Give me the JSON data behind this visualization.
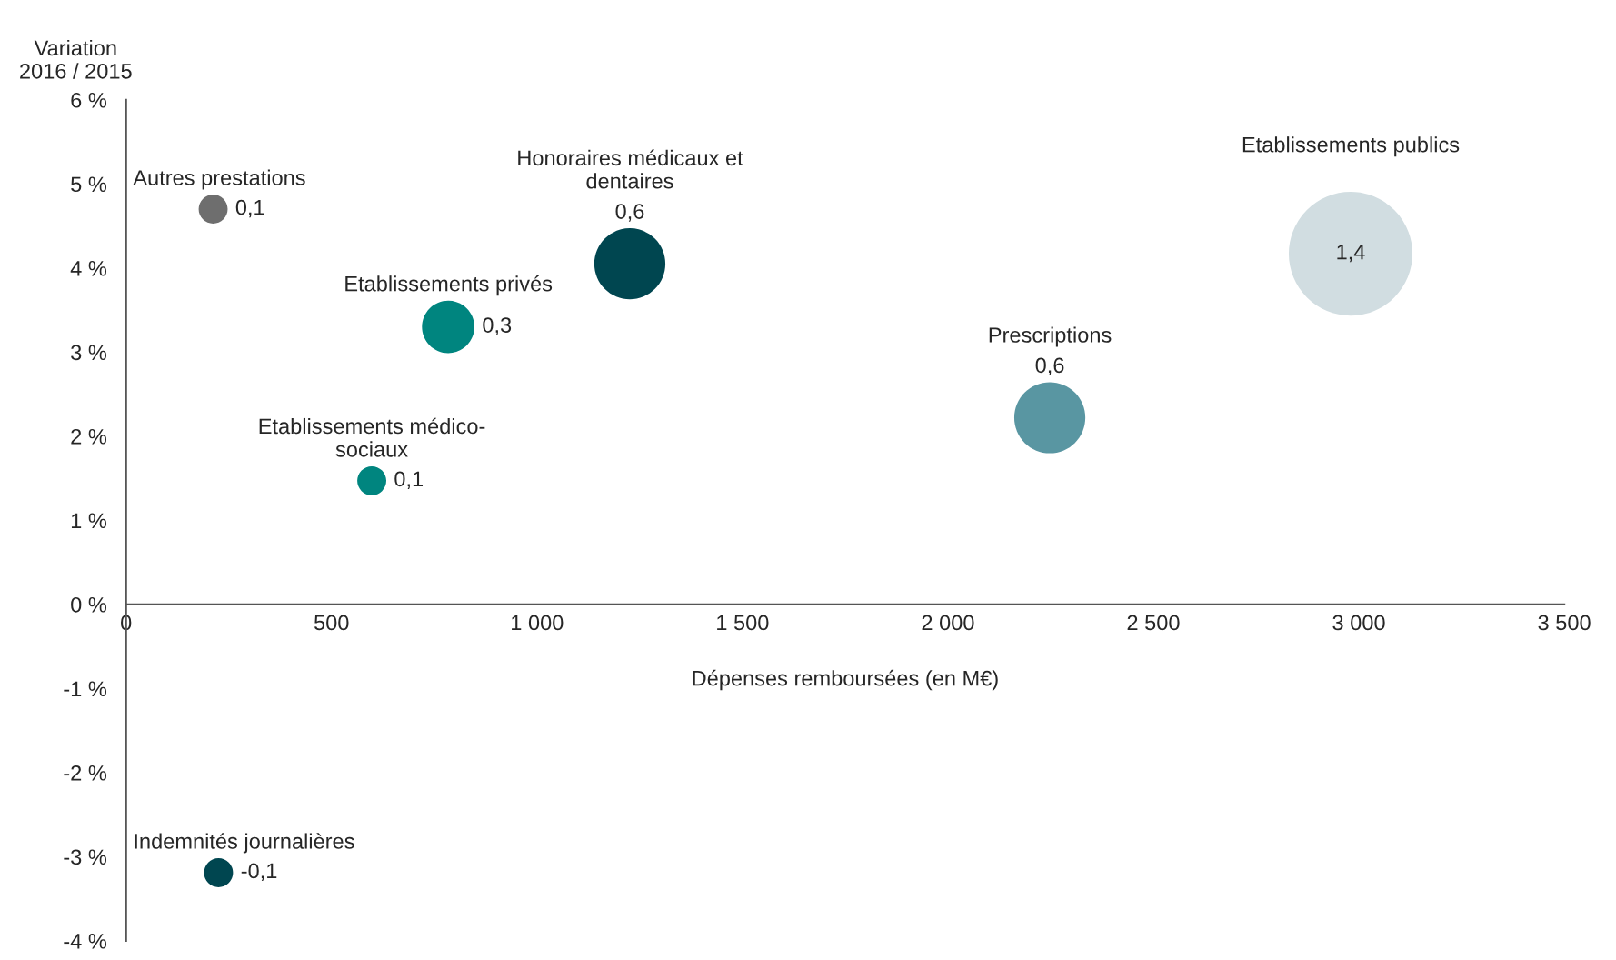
{
  "chart_data": {
    "type": "bubble",
    "xlabel": "Dépenses remboursées (en M€)",
    "ylabel": "Variation\n2016 / 2015",
    "xlim": [
      0,
      3500
    ],
    "xticks": [
      0,
      500,
      {
        "value": 1000,
        "label": "1 000"
      },
      {
        "value": 1500,
        "label": "1 500"
      },
      {
        "value": 2000,
        "label": "2 000"
      },
      {
        "value": 2500,
        "label": "2 500"
      },
      {
        "value": 3000,
        "label": "3 000"
      },
      {
        "value": 3500,
        "label": "3 500"
      }
    ],
    "ylim": [
      -4,
      6
    ],
    "yticks": [
      {
        "value": -4,
        "label": "-4 %"
      },
      {
        "value": -3,
        "label": "-3 %"
      },
      {
        "value": -2,
        "label": "-2 %"
      },
      {
        "value": -1,
        "label": "-1 %"
      },
      {
        "value": 0,
        "label": "0 %"
      },
      {
        "value": 1,
        "label": "1 %"
      },
      {
        "value": 2,
        "label": "2 %"
      },
      {
        "value": 3,
        "label": "3 %"
      },
      {
        "value": 4,
        "label": "4 %"
      },
      {
        "value": 5,
        "label": "5 %"
      },
      {
        "value": 6,
        "label": "6 %"
      }
    ],
    "grid": false,
    "legend": false,
    "annotations": [
      {
        "text": "0,1",
        "x": 212,
        "y": 4.7
      },
      {
        "text": "0,3",
        "x": 784,
        "y": 3.3
      },
      {
        "text": "0,6",
        "x": 1226,
        "y": 4.05
      },
      {
        "text": "0,1",
        "x": 598,
        "y": 1.47
      },
      {
        "text": "0,6",
        "x": 2248,
        "y": 2.22
      },
      {
        "text": "1,4",
        "x": 2980,
        "y": 4.17
      },
      {
        "text": "-0,1",
        "x": 225,
        "y": -3.19
      }
    ],
    "series": [
      {
        "name": "Autres prestations",
        "color": "#6e6e6e",
        "x": [
          212
        ],
        "values": [
          4.7
        ],
        "sizes": [
          0.055
        ]
      },
      {
        "name": "Etablissements privés",
        "color": "#00857f",
        "x": [
          784
        ],
        "values": [
          3.3
        ],
        "sizes": [
          0.18
        ]
      },
      {
        "name": "Honoraires médicaux et\ndentaires",
        "color": "#004650",
        "x": [
          1226
        ],
        "values": [
          4.05
        ],
        "sizes": [
          0.33
        ]
      },
      {
        "name": "Etablissements médico-\nsociaux",
        "color": "#00857f",
        "x": [
          598
        ],
        "values": [
          1.47
        ],
        "sizes": [
          0.055
        ]
      },
      {
        "name": "Prescriptions",
        "color": "#5996a2",
        "x": [
          2248
        ],
        "values": [
          2.22
        ],
        "sizes": [
          0.33
        ]
      },
      {
        "name": "Etablissements publics",
        "color": "#d1dde1",
        "x": [
          2980
        ],
        "values": [
          4.17
        ],
        "sizes": [
          1
        ]
      },
      {
        "name": "Indemnités journalières",
        "color": "#004650",
        "x": [
          225
        ],
        "values": [
          -3.19
        ],
        "sizes": [
          0.055
        ]
      }
    ]
  }
}
